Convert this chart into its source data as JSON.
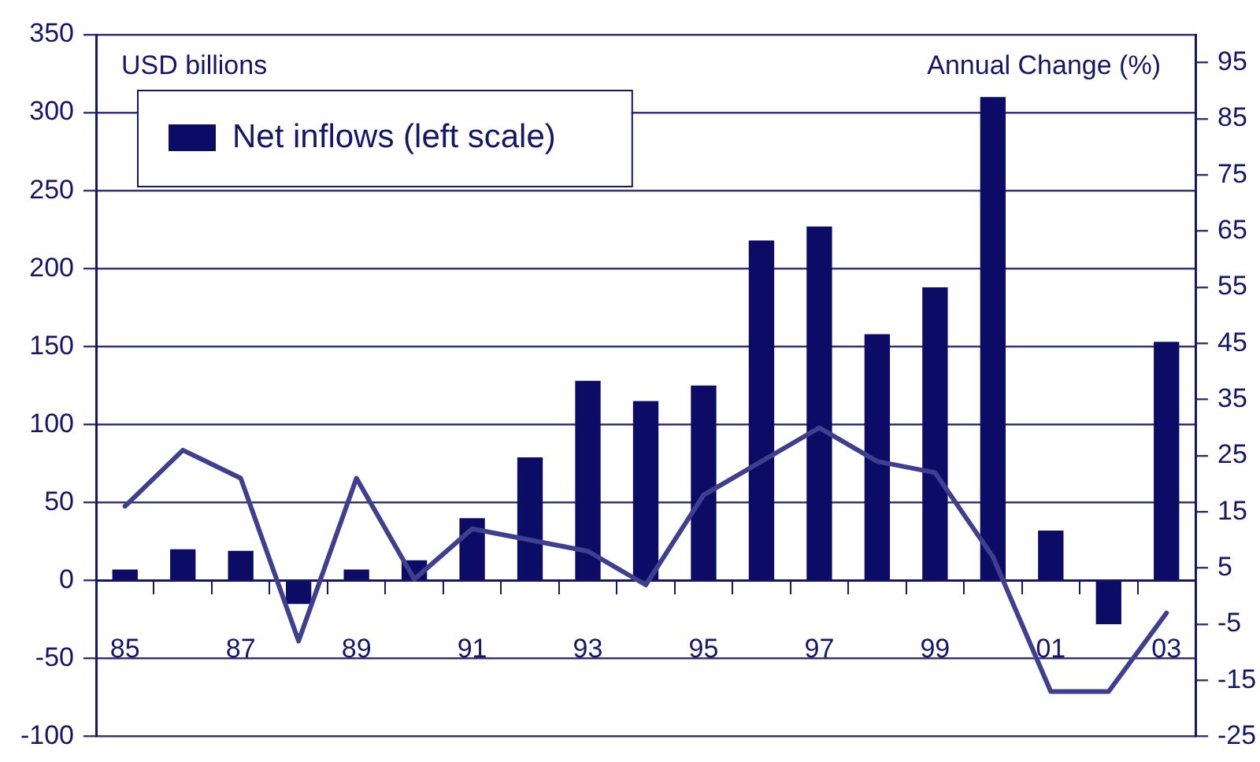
{
  "chart_data": {
    "type": "bar",
    "ylabel": "USD billions",
    "y2label": "Annual Change (%)",
    "categories": [
      "85",
      null,
      "87",
      null,
      "89",
      null,
      "91",
      null,
      "93",
      null,
      "95",
      null,
      "97",
      null,
      "99",
      null,
      "01",
      null,
      "03"
    ],
    "series": [
      {
        "name": "Net inflows (left scale)",
        "color": "#0c0c66",
        "values": [
          7,
          20,
          19,
          -15,
          7,
          13,
          40,
          79,
          128,
          115,
          125,
          218,
          227,
          158,
          188,
          310,
          32,
          -28,
          153
        ]
      },
      {
        "type": "line",
        "axis": "y2",
        "color": "#3f3f8f",
        "values": [
          16,
          26,
          21,
          -8,
          21,
          3,
          12,
          10,
          8,
          2,
          18,
          24,
          30,
          24,
          22,
          7,
          -17,
          -17,
          -3
        ]
      }
    ],
    "ylim": [
      -100,
      350
    ],
    "yticks": [
      -100,
      -50,
      0,
      50,
      100,
      150,
      200,
      250,
      300,
      350
    ],
    "y2lim": [
      -25,
      100
    ],
    "y2ticks": [
      -25,
      -15,
      -5,
      5,
      15,
      25,
      35,
      45,
      55,
      65,
      75,
      85,
      95
    ],
    "grid": "y",
    "legend": "top left",
    "marker": "none"
  }
}
